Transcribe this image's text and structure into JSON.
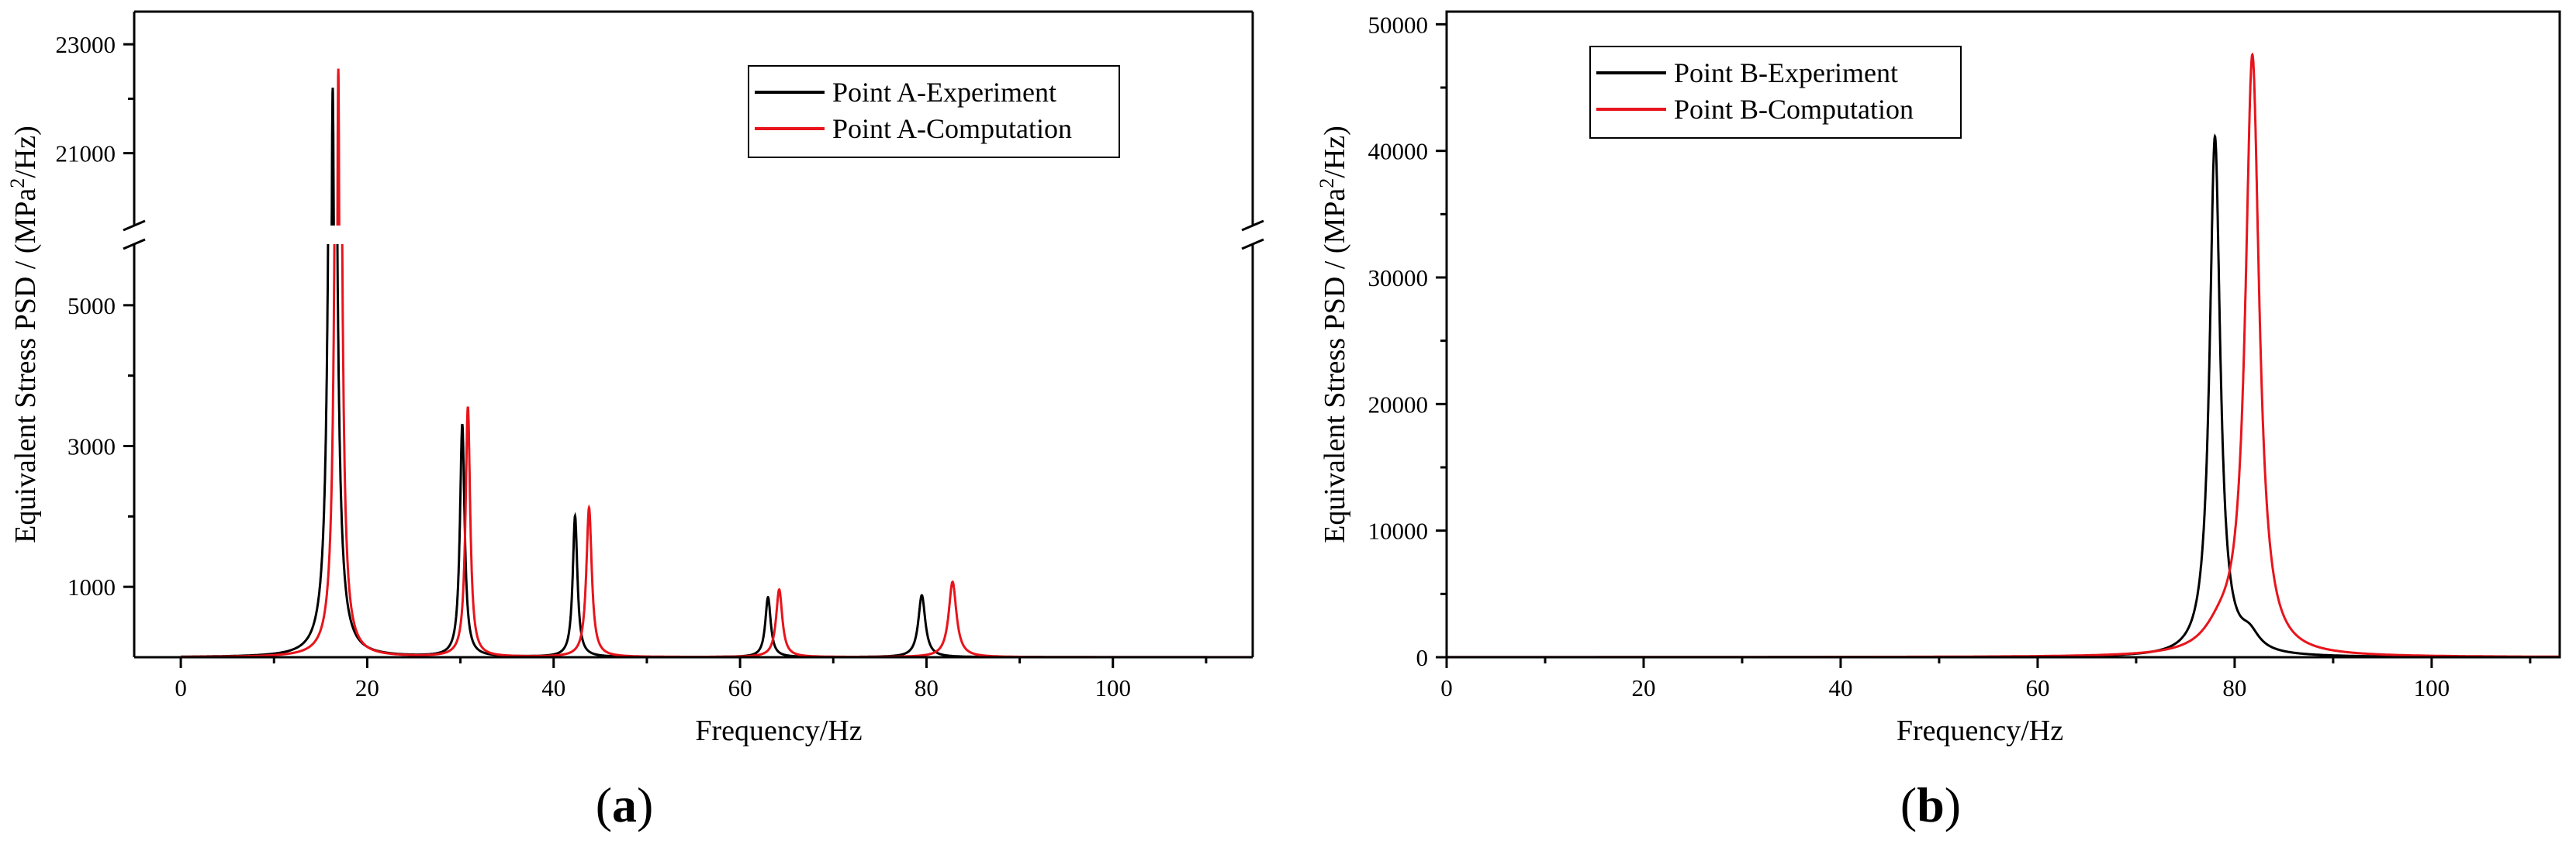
{
  "figure": {
    "panel_a_label": "a",
    "panel_b_label": "b"
  },
  "chart_data": [
    {
      "type": "line",
      "panel": "a",
      "xlabel": "Frequency/Hz",
      "ylabel": "Equivalent Stress PSD / (MPa²/Hz)",
      "xlim": [
        -5,
        115
      ],
      "x_ticks": [
        0,
        20,
        40,
        60,
        80,
        100
      ],
      "y_ticks_lower": [
        1000,
        3000,
        5000
      ],
      "y_ticks_upper": [
        21000,
        23000
      ],
      "y_axis_break": {
        "lower_range": [
          0,
          6000
        ],
        "upper_range": [
          19500,
          23600
        ]
      },
      "legend": {
        "position": "top-right",
        "entries": [
          "Point A-Experiment",
          "Point A-Computation"
        ]
      },
      "series": [
        {
          "name": "Point A-Experiment",
          "color": "#000000",
          "peaks": [
            {
              "f": 16.3,
              "amp": 22200,
              "width": 0.3
            },
            {
              "f": 30.2,
              "amp": 3300,
              "width": 0.3
            },
            {
              "f": 42.3,
              "amp": 2000,
              "width": 0.3
            },
            {
              "f": 63.0,
              "amp": 850,
              "width": 0.35
            },
            {
              "f": 79.5,
              "amp": 880,
              "width": 0.45
            }
          ]
        },
        {
          "name": "Point A-Computation",
          "color": "#e8141b",
          "peaks": [
            {
              "f": 16.9,
              "amp": 22550,
              "width": 0.25
            },
            {
              "f": 30.8,
              "amp": 3550,
              "width": 0.3
            },
            {
              "f": 43.8,
              "amp": 2120,
              "width": 0.35
            },
            {
              "f": 64.2,
              "amp": 960,
              "width": 0.4
            },
            {
              "f": 82.8,
              "amp": 1070,
              "width": 0.5
            }
          ]
        }
      ]
    },
    {
      "type": "line",
      "panel": "b",
      "xlabel": "Frequency/Hz",
      "ylabel": "Equivalent Stress PSD / (MPa²/Hz)",
      "xlim": [
        0,
        113
      ],
      "ylim": [
        0,
        51000
      ],
      "x_ticks": [
        0,
        20,
        40,
        60,
        80,
        100
      ],
      "y_ticks": [
        0,
        10000,
        20000,
        30000,
        40000,
        50000
      ],
      "legend": {
        "position": "top-left",
        "entries": [
          "Point B-Experiment",
          "Point B-Computation"
        ]
      },
      "series": [
        {
          "name": "Point B-Experiment",
          "color": "#000000",
          "peaks": [
            {
              "f": 78.0,
              "amp": 41000,
              "width": 0.65
            }
          ],
          "shoulder": {
            "f": 81.5,
            "amp": 1300,
            "width": 1.2
          }
        },
        {
          "name": "Point B-Computation",
          "color": "#e8141b",
          "peaks": [
            {
              "f": 81.8,
              "amp": 47200,
              "width": 0.85
            }
          ],
          "shoulder": {
            "f": 78.5,
            "amp": 1500,
            "width": 2.0
          }
        }
      ]
    }
  ]
}
